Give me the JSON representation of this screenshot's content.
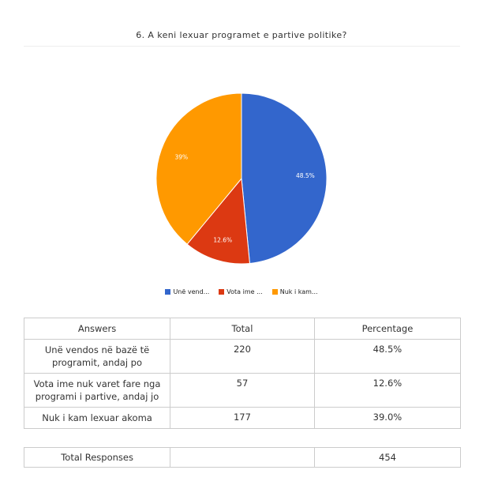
{
  "title": "6. A keni lexuar programet e partive politike?",
  "chart_data": {
    "type": "pie",
    "slices": [
      {
        "label": "Unë vendos në bazë të programit, andaj po",
        "legend_label": "Unë vend...",
        "value": 220,
        "percent_label": "48.5%",
        "color": "#3366cc"
      },
      {
        "label": "Vota ime nuk varet fare nga programi i partive, andaj jo",
        "legend_label": "Vota ime ...",
        "value": 57,
        "percent_label": "12.6%",
        "color": "#dc3912"
      },
      {
        "label": "Nuk i kam lexuar akoma",
        "legend_label": "Nuk i kam...",
        "value": 177,
        "percent_label": "39%",
        "color": "#ff9900"
      }
    ],
    "legend_position": "bottom"
  },
  "table": {
    "headers": [
      "Answers",
      "Total",
      "Percentage"
    ],
    "rows": [
      {
        "answer": "Unë vendos në bazë të programit, andaj po",
        "total": "220",
        "percentage": "48.5%"
      },
      {
        "answer": "Vota ime nuk varet fare nga programi i partive, andaj jo",
        "total": "57",
        "percentage": "12.6%"
      },
      {
        "answer": "Nuk i kam lexuar akoma",
        "total": "177",
        "percentage": "39.0%"
      }
    ]
  },
  "totals": {
    "label": "Total Responses",
    "value": "454"
  }
}
